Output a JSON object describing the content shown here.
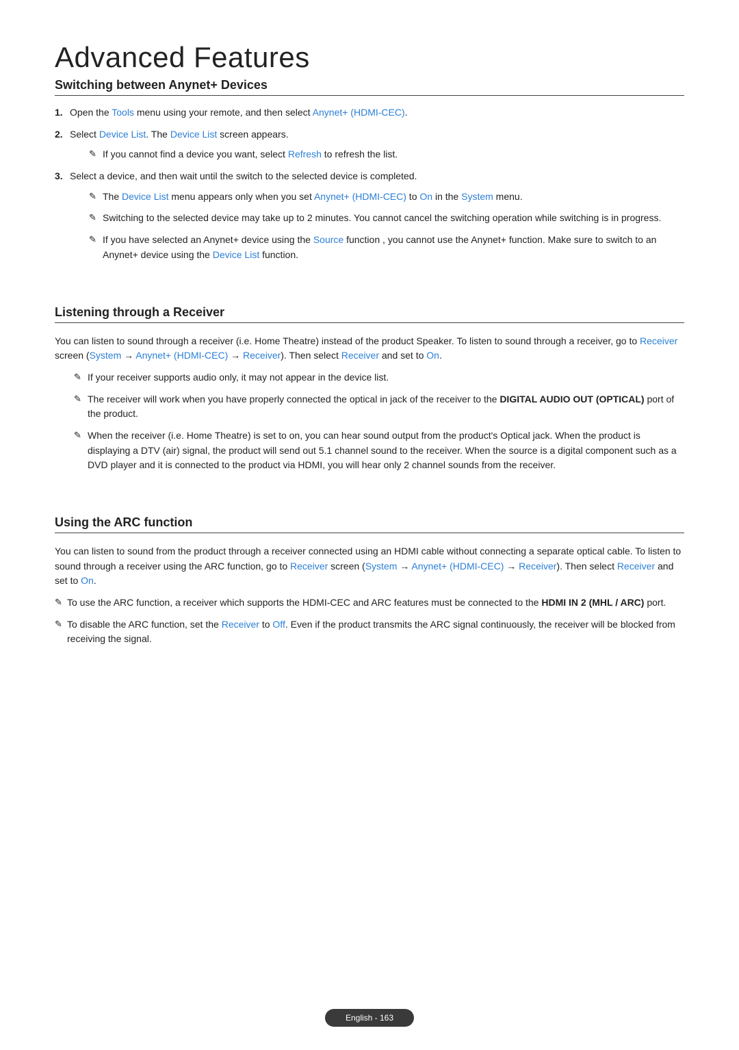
{
  "typography": {
    "title_fontsize": 42,
    "title_weight": 200,
    "subhead_fontsize": 18,
    "subhead_weight": 700,
    "body_fontsize": 14,
    "body_lineheight": 1.55
  },
  "colors": {
    "text": "#222222",
    "link": "#2b7fd6",
    "background": "#ffffff",
    "underline": "#444444",
    "pill_bg": "#3a3a3a",
    "pill_text": "#ffffff"
  },
  "title": "Advanced Features",
  "section1": {
    "heading": "Switching between Anynet+ Devices",
    "step1_num": "1.",
    "step1_a": "Open the ",
    "step1_tools": "Tools",
    "step1_b": " menu using your remote, and then select ",
    "step1_anynet": "Anynet+ (HDMI-CEC)",
    "step1_c": ".",
    "step2_num": "2.",
    "step2_a": "Select ",
    "step2_dl1": "Device List",
    "step2_b": ". The ",
    "step2_dl2": "Device List",
    "step2_c": " screen appears.",
    "step2_note_a": "If you cannot find a device you want, select ",
    "step2_note_refresh": "Refresh",
    "step2_note_b": " to refresh the list.",
    "step3_num": "3.",
    "step3_a": "Select a device, and then wait until the switch to the selected device is completed.",
    "s3n1_a": "The ",
    "s3n1_dl": "Device List",
    "s3n1_b": " menu appears only when you set ",
    "s3n1_any": "Anynet+ (HDMI-CEC)",
    "s3n1_c": " to ",
    "s3n1_on": "On",
    "s3n1_d": " in the ",
    "s3n1_sys": "System",
    "s3n1_e": " menu.",
    "s3n2": "Switching to the selected device may take up to 2 minutes. You cannot cancel the switching operation while switching is in progress.",
    "s3n3_a": "If you have selected an Anynet+ device using the ",
    "s3n3_src": "Source",
    "s3n3_b": " function , you cannot use the Anynet+ function. Make sure to switch to an Anynet+ device using the ",
    "s3n3_dl": "Device List",
    "s3n3_c": " function."
  },
  "section2": {
    "heading": "Listening through a Receiver",
    "p_a": "You can listen to sound through a receiver (i.e. Home Theatre) instead of the product Speaker. To listen to sound through a receiver, go to ",
    "p_rec1": "Receiver",
    "p_b": " screen (",
    "p_sys": "System",
    "p_arrow1": " → ",
    "p_any": "Anynet+ (HDMI-CEC)",
    "p_arrow2": " → ",
    "p_rec2": "Receiver",
    "p_c": "). Then select ",
    "p_rec3": "Receiver",
    "p_d": " and set to ",
    "p_on": "On",
    "p_e": ".",
    "n1": "If your receiver supports audio only, it may not appear in the device list.",
    "n2_a": "The receiver will work when you have properly connected the optical in jack of the receiver to the ",
    "n2_bold": "DIGITAL AUDIO OUT (OPTICAL)",
    "n2_b": " port of the product.",
    "n3": "When the receiver (i.e. Home Theatre) is set to on, you can hear sound output from the product's Optical jack. When the product is displaying a DTV (air) signal, the product will send out 5.1 channel sound to the receiver. When the source is a digital component such as a DVD player and it is connected to the product via HDMI, you will hear only 2 channel sounds from the receiver."
  },
  "section3": {
    "heading": "Using the ARC function",
    "p_a": "You can listen to sound from the product through a receiver connected using an HDMI cable without connecting a separate optical cable. To listen to sound through a receiver using the ARC function, go to ",
    "p_rec1": "Receiver",
    "p_b": " screen (",
    "p_sys": "System",
    "p_arrow1": " → ",
    "p_any": "Anynet+ (HDMI-CEC)",
    "p_arrow2": " → ",
    "p_rec2": "Receiver",
    "p_c": "). Then select ",
    "p_rec3": "Receiver",
    "p_d": " and set to ",
    "p_on": "On",
    "p_e": ".",
    "n1_a": "To use the ARC function, a receiver which supports the HDMI-CEC and ARC features must be connected to the ",
    "n1_bold": "HDMI IN 2 (MHL / ARC)",
    "n1_b": " port.",
    "n2_a": "To disable the ARC function, set the ",
    "n2_rec": "Receiver",
    "n2_b": " to ",
    "n2_off": "Off",
    "n2_c": ". Even if the product transmits the ARC signal continuously, the receiver will be blocked from receiving the signal."
  },
  "footer": "English - 163",
  "glyph": {
    "hand": "✎"
  }
}
